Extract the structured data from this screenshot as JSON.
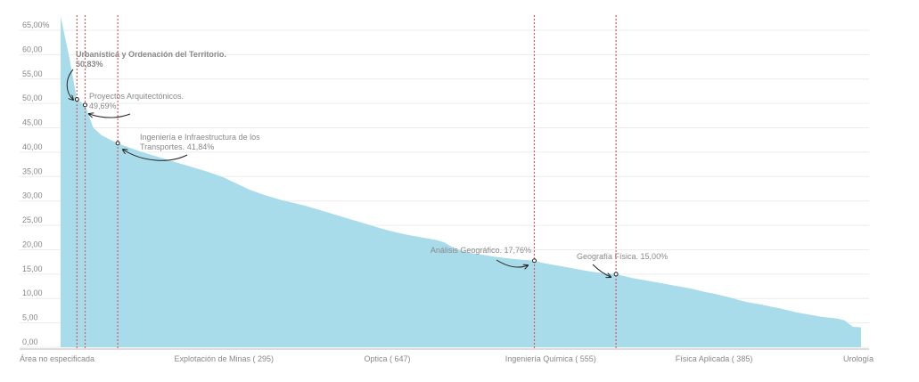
{
  "chart_data": {
    "type": "area",
    "categories": [
      "Área no especificada",
      null,
      null,
      null,
      null,
      null,
      null,
      null,
      null,
      null,
      null,
      null,
      null,
      null,
      null,
      null,
      null,
      null,
      null,
      null,
      "Explotación de Minas ( 295)",
      null,
      null,
      null,
      null,
      null,
      null,
      null,
      null,
      null,
      null,
      null,
      null,
      null,
      null,
      null,
      null,
      null,
      null,
      null,
      "Optica ( 647)",
      null,
      null,
      null,
      null,
      null,
      null,
      null,
      null,
      null,
      null,
      null,
      null,
      null,
      null,
      null,
      null,
      null,
      null,
      null,
      "Ingeniería Química ( 555)",
      null,
      null,
      null,
      null,
      null,
      null,
      null,
      null,
      null,
      null,
      null,
      null,
      null,
      null,
      null,
      null,
      null,
      null,
      null,
      "Física Aplicada ( 385)",
      null,
      null,
      null,
      null,
      null,
      null,
      null,
      null,
      null,
      null,
      null,
      null,
      null,
      null,
      null,
      null,
      null,
      "Urología"
    ],
    "values": [
      67.8,
      60,
      50.83,
      49.69,
      45,
      43.5,
      42.6,
      41.84,
      41.2,
      40.6,
      40,
      39.5,
      39,
      38.5,
      38,
      37.5,
      37,
      36.5,
      36,
      35.4,
      34.8,
      34,
      33.2,
      32.4,
      31.8,
      31.2,
      30.7,
      30.2,
      29.8,
      29.4,
      29,
      28.5,
      28,
      27.5,
      27,
      26.5,
      26,
      25.5,
      25,
      24.5,
      24,
      23.6,
      23.2,
      22.9,
      22.6,
      22.3,
      22,
      21.5,
      20.5,
      19.8,
      19.4,
      19.1,
      18.9,
      18.6,
      18.4,
      18.2,
      18,
      17.9,
      17.76,
      17.3,
      17,
      16.7,
      16.4,
      16.1,
      15.8,
      15.5,
      15.3,
      15.1,
      15.0,
      14.6,
      14.2,
      13.9,
      13.6,
      13.3,
      13,
      12.7,
      12.4,
      12.1,
      11.7,
      11.3,
      11,
      10.6,
      10.2,
      9.7,
      9.3,
      9,
      8.7,
      8.3,
      8,
      7.6,
      7.2,
      6.9,
      6.6,
      6.3,
      6.1,
      5.9,
      5.5,
      4.2,
      4.1
    ],
    "color": "#a9dcea",
    "ylim": [
      0,
      65
    ],
    "yticks": [
      {
        "value": 0,
        "label": "0,00"
      },
      {
        "value": 5,
        "label": "5,00"
      },
      {
        "value": 10,
        "label": "10,00"
      },
      {
        "value": 15,
        "label": "15,00"
      },
      {
        "value": 20,
        "label": "20,00"
      },
      {
        "value": 25,
        "label": "25,00"
      },
      {
        "value": 30,
        "label": "30,00"
      },
      {
        "value": 35,
        "label": "35,00"
      },
      {
        "value": 40,
        "label": "40,00"
      },
      {
        "value": 45,
        "label": "45,00"
      },
      {
        "value": 50,
        "label": "50,00"
      },
      {
        "value": 55,
        "label": "55,00"
      },
      {
        "value": 60,
        "label": "60,00"
      },
      {
        "value": 65,
        "label": "65,00%"
      }
    ],
    "grid": true,
    "annotations": [
      {
        "lines": [
          "Urbanística y Ordenación del Territorio."
        ],
        "value_label": "50,83%",
        "color": "#d0312d"
      },
      {
        "lines": [
          "Proyectos Arquitectónicos."
        ],
        "value_label": "49,69%",
        "color": "#222222"
      },
      {
        "lines": [
          "Ingeniería e Infraestructura de los",
          "Transportes."
        ],
        "value_label": "41,84%",
        "color": "#222222"
      },
      {
        "lines": [
          "Análisis Geográfico."
        ],
        "value_label": "17,76%",
        "color": "#222222"
      },
      {
        "lines": [
          "Geografía Física."
        ],
        "value_label": "15,00%",
        "color": "#222222"
      }
    ]
  }
}
